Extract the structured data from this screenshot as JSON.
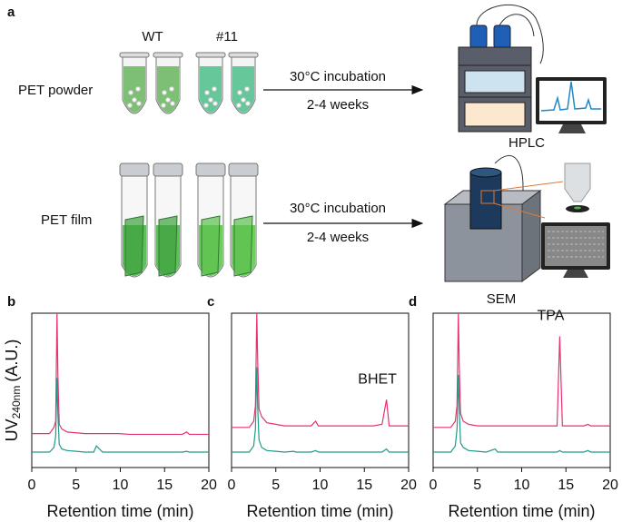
{
  "panel_a": {
    "label": "a",
    "groups": [
      "WT",
      "#11"
    ],
    "rows": [
      {
        "sample": "PET powder",
        "condition": "30°C incubation",
        "duration": "2-4 weeks",
        "instrument": "HPLC"
      },
      {
        "sample": "PET film",
        "condition": "30°C incubation",
        "duration": "2-4 weeks",
        "instrument": "SEM"
      }
    ]
  },
  "y_label": {
    "main": "UV",
    "sub": "240nm",
    "unit": "(A.U.)"
  },
  "chart_data": [
    {
      "type": "line",
      "label": "b",
      "x_label": "Retention time (min)",
      "xlim": [
        0,
        20
      ],
      "xticks": [
        0,
        5,
        10,
        15,
        20
      ],
      "ylim": [
        0,
        100
      ],
      "x": [
        0,
        1,
        2,
        2.5,
        2.7,
        2.85,
        2.95,
        3.1,
        3.4,
        4,
        5,
        6,
        7,
        7.3,
        8,
        9,
        9.5,
        9.8,
        11,
        12,
        13,
        14,
        14.3,
        14.6,
        15,
        16,
        17,
        17.5,
        17.8,
        19,
        20
      ],
      "series": [
        {
          "color": "#e5336e",
          "values": [
            22,
            22,
            22,
            26,
            30,
            100,
            60,
            28,
            25,
            23,
            22.5,
            22,
            22,
            22,
            22,
            22,
            22,
            22,
            21.5,
            21.5,
            21.5,
            21.5,
            21.5,
            21.5,
            21.5,
            21.5,
            21.5,
            23,
            21.5,
            21.5,
            21.5
          ]
        },
        {
          "color": "#1f9a8a",
          "values": [
            10,
            10,
            10,
            13,
            20,
            58,
            35,
            15,
            12,
            11,
            10.5,
            10,
            10,
            14,
            10,
            10,
            10,
            10,
            10,
            10,
            10,
            10,
            10,
            10,
            10,
            10,
            10,
            10.5,
            10,
            10,
            10
          ]
        }
      ]
    },
    {
      "type": "line",
      "label": "c",
      "x_label": "Retention time (min)",
      "xlim": [
        0,
        20
      ],
      "xticks": [
        0,
        5,
        10,
        15,
        20
      ],
      "ylim": [
        0,
        100
      ],
      "annotation": {
        "text": "BHET",
        "x": 17.5,
        "y": 44
      },
      "x": [
        0,
        1,
        2,
        2.5,
        2.7,
        2.85,
        2.95,
        3.1,
        3.4,
        4,
        5,
        6,
        7,
        7.3,
        8,
        9,
        9.5,
        9.8,
        11,
        12,
        13,
        14,
        14.3,
        14.6,
        15,
        16,
        17,
        17.5,
        17.8,
        19,
        20
      ],
      "series": [
        {
          "color": "#e5336e",
          "values": [
            26,
            26,
            26,
            30,
            40,
            100,
            70,
            38,
            33,
            29,
            28,
            27,
            27,
            27,
            27,
            27,
            30,
            27,
            27,
            27,
            27,
            27,
            27,
            27,
            27,
            27,
            28,
            44,
            27,
            27,
            27
          ]
        },
        {
          "color": "#1f9a8a",
          "values": [
            10,
            10,
            10,
            14,
            25,
            65,
            40,
            18,
            13,
            11,
            10.5,
            10,
            10.5,
            10,
            10,
            10,
            11,
            10,
            10,
            10,
            10,
            10,
            10,
            10,
            10,
            10,
            10,
            12,
            10,
            10,
            10
          ]
        }
      ]
    },
    {
      "type": "line",
      "label": "d",
      "x_label": "Retention time (min)",
      "xlim": [
        0,
        20
      ],
      "xticks": [
        0,
        5,
        10,
        15,
        20
      ],
      "ylim": [
        0,
        100
      ],
      "annotation": {
        "text": "TPA",
        "x": 14.3,
        "y": 85
      },
      "x": [
        0,
        1,
        2,
        2.5,
        2.7,
        2.85,
        2.95,
        3.1,
        3.4,
        4,
        5,
        6,
        7,
        7.3,
        8,
        9,
        9.5,
        9.8,
        11,
        12,
        13,
        14,
        14.3,
        14.6,
        15,
        16,
        17,
        17.5,
        17.8,
        19,
        20
      ],
      "series": [
        {
          "color": "#e5336e",
          "values": [
            26,
            26,
            26,
            30,
            40,
            100,
            65,
            35,
            30,
            28,
            27,
            27,
            27,
            27,
            27,
            27,
            27,
            27,
            27,
            27,
            27,
            27,
            85,
            27,
            27,
            27,
            27,
            28,
            27,
            27,
            27
          ]
        },
        {
          "color": "#1f9a8a",
          "values": [
            10,
            10,
            10,
            14,
            25,
            60,
            38,
            16,
            13,
            11,
            10.5,
            10,
            12,
            10,
            10,
            10,
            10,
            10,
            10,
            10,
            10,
            10,
            11,
            10,
            10,
            10,
            10,
            11,
            10,
            10,
            10
          ]
        }
      ]
    }
  ]
}
